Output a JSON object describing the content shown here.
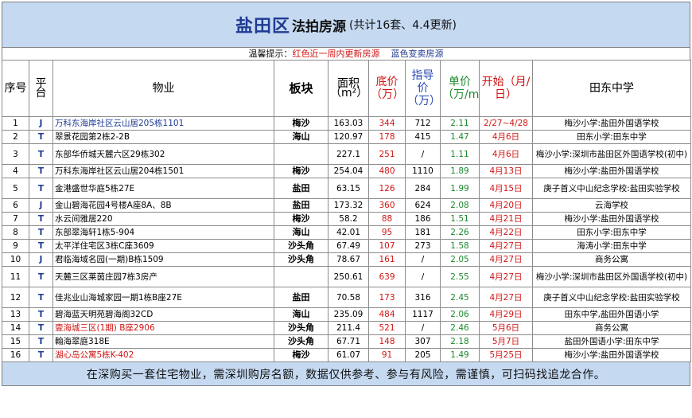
{
  "title": {
    "main": "盐田区",
    "sub": "法拍房源",
    "note": "(共计16套、4.4更新)"
  },
  "tip": {
    "prefix": "温馨提示：",
    "red": "红色近一周内更新房源",
    "blue": "蓝色变卖房源"
  },
  "headers": {
    "seq": "序号",
    "platform": "平台",
    "property": "物业",
    "block": "板块",
    "area": "面积（m²）",
    "base_price": "底价（万）",
    "guide_price": "指导价（万）",
    "unit_price": "单价（万/m²）",
    "start": "开始（月/日）",
    "school": "田东中学"
  },
  "rows": [
    {
      "seq": "1",
      "platform": "J",
      "property": "万科东海岸社区云山居205栋1101",
      "block": "梅沙",
      "area": "163.03",
      "base": "344",
      "guide": "712",
      "unit": "2.11",
      "start": "2/27~4/28",
      "school": "梅沙小学:盐田外国语学校",
      "color": "blue"
    },
    {
      "seq": "2",
      "platform": "T",
      "property": "翠景花园第2栋2-2B",
      "block": "海山",
      "area": "120.97",
      "base": "178",
      "guide": "415",
      "unit": "1.47",
      "start": "4月6日",
      "school": "田东小学:田东中学",
      "color": "normal"
    },
    {
      "seq": "3",
      "platform": "T",
      "property": "东部华侨城天麓六区29栋302",
      "block": "",
      "area": "227.1",
      "base": "251",
      "guide": "/",
      "unit": "1.11",
      "start": "4月6日",
      "school": "梅沙小学:深圳市盐田区外国语学校(初中)",
      "color": "normal"
    },
    {
      "seq": "4",
      "platform": "T",
      "property": "万科东海岸社区云山居204栋1501",
      "block": "梅沙",
      "area": "254.04",
      "base": "480",
      "guide": "1110",
      "unit": "1.89",
      "start": "4月13日",
      "school": "梅沙小学:盐田外国语学校",
      "color": "normal"
    },
    {
      "seq": "5",
      "platform": "T",
      "property": "金港盛世华庭5栋27E",
      "block": "盐田",
      "area": "63.15",
      "base": "126",
      "guide": "284",
      "unit": "1.99",
      "start": "4月15日",
      "school": "庚子首义中山纪念学校:盐田实验学校",
      "color": "normal"
    },
    {
      "seq": "6",
      "platform": "J",
      "property": "金山碧海花园4号楼A座8A、8B",
      "block": "盐田",
      "area": "173.32",
      "base": "360",
      "guide": "624",
      "unit": "2.08",
      "start": "4月20日",
      "school": "云海学校",
      "color": "normal"
    },
    {
      "seq": "7",
      "platform": "T",
      "property": "水云间雅居220",
      "block": "梅沙",
      "area": "58.2",
      "base": "88",
      "guide": "186",
      "unit": "1.51",
      "start": "4月21日",
      "school": "梅沙小学:盐田外国语学校",
      "color": "normal"
    },
    {
      "seq": "8",
      "platform": "T",
      "property": "东部翠海轩1栋5-904",
      "block": "海山",
      "area": "42.01",
      "base": "95",
      "guide": "181",
      "unit": "2.26",
      "start": "4月22日",
      "school": "田东小学:田东中学",
      "color": "normal"
    },
    {
      "seq": "9",
      "platform": "T",
      "property": "太平洋住宅区3栋C座3609",
      "block": "沙头角",
      "area": "67.49",
      "base": "107",
      "guide": "273",
      "unit": "1.58",
      "start": "4月27日",
      "school": "海涛小学:田东中学",
      "color": "normal"
    },
    {
      "seq": "10",
      "platform": "J",
      "property": "君临海域名园(一期)B栋1509",
      "block": "沙头角",
      "area": "78.67",
      "base": "161",
      "guide": "/",
      "unit": "2.05",
      "start": "4月27日",
      "school": "商务公寓",
      "color": "normal"
    },
    {
      "seq": "11",
      "platform": "T",
      "property": "天麓三区莱茵庄园7栋3房产",
      "block": "",
      "area": "250.61",
      "base": "639",
      "guide": "/",
      "unit": "2.55",
      "start": "4月27日",
      "school": "梅沙小学:深圳市盐田区外国语学校(初中)",
      "color": "normal"
    },
    {
      "seq": "12",
      "platform": "T",
      "property": "佳兆业山海城家园一期1栋B座27E",
      "block": "盐田",
      "area": "70.58",
      "base": "173",
      "guide": "316",
      "unit": "2.45",
      "start": "4月27日",
      "school": "庚子首义中山纪念学校:盐田实验学校",
      "color": "normal"
    },
    {
      "seq": "13",
      "platform": "T",
      "property": "碧海蓝天明苑碧海阁32CD",
      "block": "海山",
      "area": "235.09",
      "base": "484",
      "guide": "1117",
      "unit": "2.06",
      "start": "4月29日",
      "school": "田东中学,盐田外国语小学",
      "color": "normal"
    },
    {
      "seq": "14",
      "platform": "T",
      "property": "壹海城三区(1期) B座2906",
      "block": "沙头角",
      "area": "211.4",
      "base": "521",
      "guide": "/",
      "unit": "2.46",
      "start": "5月6日",
      "school": "商务公寓",
      "color": "red"
    },
    {
      "seq": "15",
      "platform": "T",
      "property": "翰海翠庭318E",
      "block": "沙头角",
      "area": "67.71",
      "base": "148",
      "guide": "307",
      "unit": "2.18",
      "start": "5月7日",
      "school": "盐田外国语小学:田东中学",
      "color": "normal"
    },
    {
      "seq": "16",
      "platform": "T",
      "property": "湖心岛公寓5栋K-402",
      "block": "梅沙",
      "area": "61.07",
      "base": "91",
      "guide": "205",
      "unit": "1.49",
      "start": "5月25日",
      "school": "梅沙小学:盐田外国语学校",
      "color": "red"
    }
  ],
  "footer": "在深购买一套住宅物业，需深圳购房名额，数据仅供参考、参与有风险，需谨慎，可扫码找追龙合作。",
  "colors": {
    "header_bg": "#c5d9f1",
    "red": "#d21414",
    "blue": "#1f3a93",
    "green": "#1d8a2e"
  }
}
